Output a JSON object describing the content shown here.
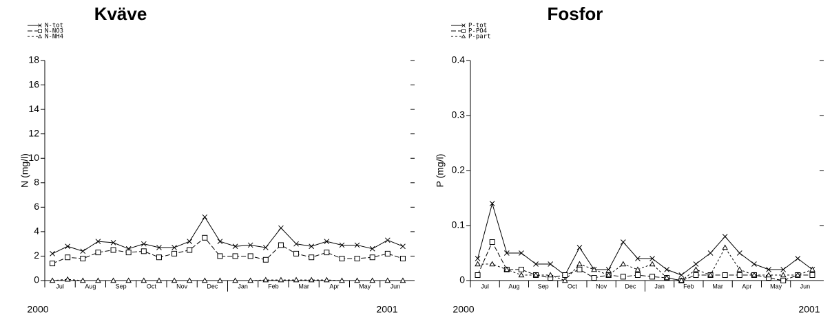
{
  "chart_data": [
    {
      "type": "line",
      "title": "Kväve",
      "y_label": "N (mg/l)",
      "categories": [
        "Jul",
        null,
        "Aug",
        null,
        "Sep",
        null,
        "Oct",
        null,
        "Nov",
        null,
        "Dec",
        null,
        "Jan",
        null,
        "Feb",
        null,
        "Mar",
        null,
        "Apr",
        null,
        "May",
        null,
        "Jun",
        null
      ],
      "year_labels": [
        "2000",
        "2001"
      ],
      "ylim": [
        0,
        18
      ],
      "yticks": [
        0,
        2,
        4,
        6,
        8,
        10,
        12,
        14,
        16,
        18
      ],
      "series": [
        {
          "name": "N-tot",
          "color": "#000000",
          "marker": "x",
          "dash": "solid",
          "values": [
            2.2,
            2.8,
            2.4,
            3.2,
            3.1,
            2.6,
            3.0,
            2.7,
            2.7,
            3.2,
            5.2,
            3.2,
            2.8,
            2.9,
            2.7,
            4.3,
            3.0,
            2.8,
            3.2,
            2.9,
            2.9,
            2.6,
            3.3,
            2.8
          ]
        },
        {
          "name": "N-NO3",
          "color": "#000000",
          "marker": "square",
          "dash": "long",
          "values": [
            1.4,
            1.9,
            1.8,
            2.3,
            2.5,
            2.3,
            2.4,
            1.9,
            2.2,
            2.5,
            3.5,
            2.0,
            2.0,
            2.0,
            1.7,
            2.9,
            2.2,
            1.9,
            2.3,
            1.8,
            1.8,
            1.9,
            2.2,
            1.8
          ]
        },
        {
          "name": "N-NH4",
          "color": "#000000",
          "marker": "triangle",
          "dash": "short",
          "values": [
            0,
            0.1,
            0,
            0,
            0,
            0,
            0,
            0,
            0,
            0,
            0,
            0,
            0,
            0,
            0.05,
            0.05,
            0.05,
            0.05,
            0.05,
            0,
            0,
            0,
            0,
            0
          ]
        }
      ]
    },
    {
      "type": "line",
      "title": "Fosfor",
      "y_label": "P (mg/l)",
      "categories": [
        "Jul",
        null,
        "Aug",
        null,
        "Sep",
        null,
        "Oct",
        null,
        "Nov",
        null,
        "Dec",
        null,
        "Jan",
        null,
        "Feb",
        null,
        "Mar",
        null,
        "Apr",
        null,
        "May",
        null,
        "Jun",
        null
      ],
      "year_labels": [
        "2000",
        "2001"
      ],
      "ylim": [
        0,
        0.4
      ],
      "yticks": [
        0,
        0.1,
        0.2,
        0.3,
        0.4
      ],
      "series": [
        {
          "name": "P-tot",
          "color": "#000000",
          "marker": "x",
          "dash": "solid",
          "values": [
            0.04,
            0.14,
            0.05,
            0.05,
            0.03,
            0.03,
            0.01,
            0.06,
            0.02,
            0.02,
            0.07,
            0.04,
            0.04,
            0.02,
            0.01,
            0.03,
            0.05,
            0.08,
            0.05,
            0.03,
            0.02,
            0.02,
            0.04,
            0.02
          ]
        },
        {
          "name": "P-PO4",
          "color": "#000000",
          "marker": "square",
          "dash": "long",
          "values": [
            0.01,
            0.07,
            0.02,
            0.02,
            0.01,
            0.005,
            0.01,
            0.02,
            0.005,
            0.01,
            0.007,
            0.01,
            0.007,
            0.005,
            0,
            0.01,
            0.01,
            0.01,
            0.01,
            0.01,
            0.005,
            0,
            0.01,
            0.01
          ]
        },
        {
          "name": "P-part",
          "color": "#000000",
          "marker": "triangle",
          "dash": "short",
          "values": [
            0.03,
            0.03,
            0.02,
            0.01,
            0.01,
            0.01,
            0,
            0.03,
            0.02,
            0.01,
            0.03,
            0.02,
            0.03,
            0.005,
            0,
            0.02,
            0.01,
            0.06,
            0.02,
            0.01,
            0.01,
            0.01,
            0.01,
            0.02
          ]
        }
      ]
    }
  ]
}
